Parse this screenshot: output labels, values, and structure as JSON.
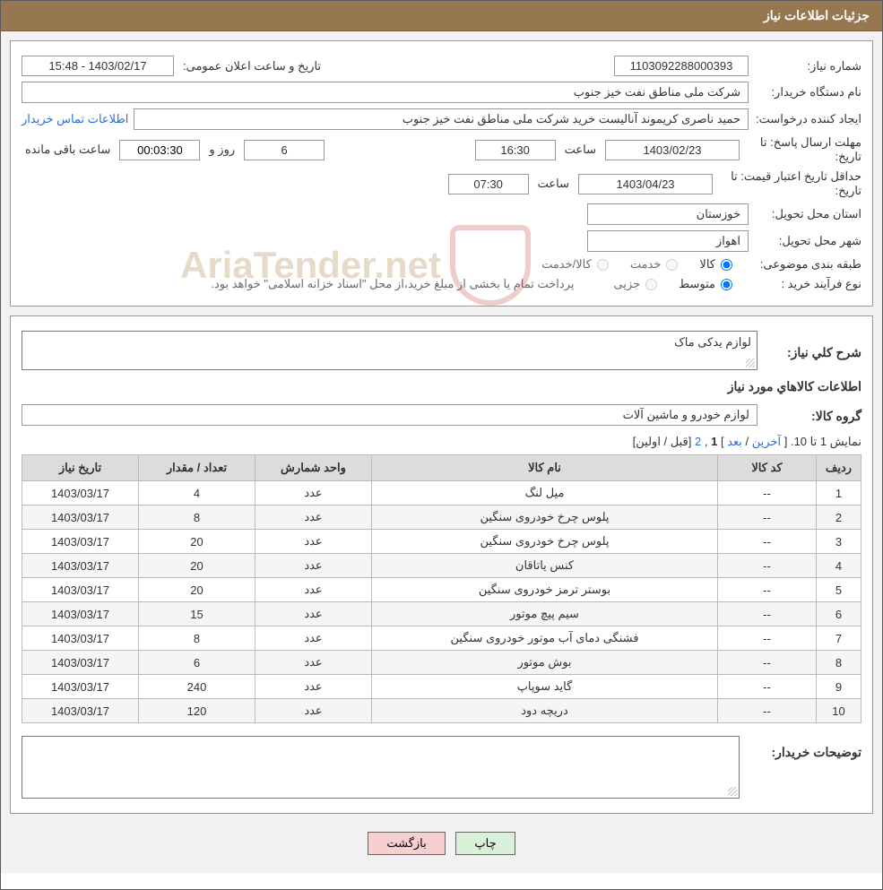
{
  "header": {
    "title": "جزئیات اطلاعات نیاز"
  },
  "need_no": {
    "label": "شماره نیاز:",
    "value": "1103092288000393"
  },
  "announce": {
    "label": "تاریخ و ساعت اعلان عمومی:",
    "value": "1403/02/17 - 15:48"
  },
  "buyer_org": {
    "label": "نام دستگاه خریدار:",
    "value": "شرکت ملی مناطق نفت خیز جنوب"
  },
  "requester": {
    "label": "ایجاد کننده درخواست:",
    "value": "حمید ناصری کریموند آنالیست خرید شرکت ملی مناطق نفت خیز جنوب"
  },
  "contact_link": "اطلاعات تماس خریدار",
  "deadline": {
    "label1": "مهلت ارسال پاسخ:  تا",
    "label2": "تاریخ:",
    "date": "1403/02/23",
    "time_label": "ساعت",
    "time": "16:30",
    "days": "6",
    "days_label": "روز و",
    "counter": "00:03:30",
    "remain": "ساعت باقی مانده"
  },
  "validity": {
    "label1": "حداقل تاریخ اعتبار قیمت: تا",
    "label2": "تاریخ:",
    "date": "1403/04/23",
    "time_label": "ساعت",
    "time": "07:30"
  },
  "province": {
    "label": "استان محل تحویل:",
    "value": "خوزستان"
  },
  "city": {
    "label": "شهر محل تحویل:",
    "value": "اهواز"
  },
  "category": {
    "label": "طبقه بندی موضوعی:",
    "opt_goods": "کالا",
    "opt_service": "خدمت",
    "opt_both": "کالا/خدمت"
  },
  "purchase_type": {
    "label": "نوع فرآیند خرید :",
    "opt_medium": "متوسط",
    "opt_partial": "جزیی",
    "note": "پرداخت تمام یا بخشی از مبلغ خرید،از محل \"اسناد خزانه اسلامی\" خواهد بود."
  },
  "overall": {
    "label": "شرح کلي نياز:",
    "value": "لوازم یدکی ماک"
  },
  "items_section_title": "اطلاعات كالاهاي مورد نياز",
  "group": {
    "label": "گروه کالا:",
    "value": "لوازم خودرو و ماشین آلات"
  },
  "pagination": {
    "prefix": "نمایش 1 تا 10. [",
    "last": "آخرین",
    "sep1": " / ",
    "next": "بعد",
    "sep2": " ] ",
    "cur": "1",
    "comma": ", ",
    "p2": "2",
    "after": " [قبل / اولین]"
  },
  "columns": {
    "row": "ردیف",
    "code": "کد کالا",
    "name": "نام کالا",
    "unit": "واحد شمارش",
    "qty": "تعداد / مقدار",
    "date": "تاریخ نیاز"
  },
  "rows": [
    {
      "n": "1",
      "code": "--",
      "name": "میل لنگ",
      "unit": "عدد",
      "qty": "4",
      "date": "1403/03/17"
    },
    {
      "n": "2",
      "code": "--",
      "name": "پلوس چرخ خودروی سنگین",
      "unit": "عدد",
      "qty": "8",
      "date": "1403/03/17"
    },
    {
      "n": "3",
      "code": "--",
      "name": "پلوس چرخ خودروی سنگین",
      "unit": "عدد",
      "qty": "20",
      "date": "1403/03/17"
    },
    {
      "n": "4",
      "code": "--",
      "name": "کنس یاتاقان",
      "unit": "عدد",
      "qty": "20",
      "date": "1403/03/17"
    },
    {
      "n": "5",
      "code": "--",
      "name": "بوستر ترمز خودروی سنگین",
      "unit": "عدد",
      "qty": "20",
      "date": "1403/03/17"
    },
    {
      "n": "6",
      "code": "--",
      "name": "سیم پیچ موتور",
      "unit": "عدد",
      "qty": "15",
      "date": "1403/03/17"
    },
    {
      "n": "7",
      "code": "--",
      "name": "فشنگی دمای آب موتور خودروی سنگین",
      "unit": "عدد",
      "qty": "8",
      "date": "1403/03/17"
    },
    {
      "n": "8",
      "code": "--",
      "name": "بوش موتور",
      "unit": "عدد",
      "qty": "6",
      "date": "1403/03/17"
    },
    {
      "n": "9",
      "code": "--",
      "name": "گاید سوپاپ",
      "unit": "عدد",
      "qty": "240",
      "date": "1403/03/17"
    },
    {
      "n": "10",
      "code": "--",
      "name": "دریچه دود",
      "unit": "عدد",
      "qty": "120",
      "date": "1403/03/17"
    }
  ],
  "buyer_notes": {
    "label": "توضيحات خریدار:"
  },
  "buttons": {
    "print": "چاپ",
    "back": "بازگشت"
  },
  "watermark": "AriaTender.net",
  "colors": {
    "header_bg": "#97774f",
    "header_fg": "#ffffff",
    "border": "#999999",
    "th_bg": "#dcdcdc",
    "link": "#2b6cd6",
    "btn_print_bg": "#d9f0d9",
    "btn_back_bg": "#f8cfcf"
  }
}
